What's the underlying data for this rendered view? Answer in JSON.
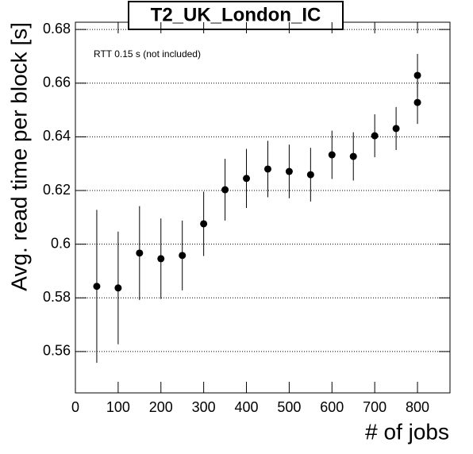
{
  "chart_data": {
    "type": "errorbar",
    "title": "T2_UK_London_IC",
    "annotation": "RTT 0.15 s (not included)",
    "x_label": "# of jobs",
    "y_label": "Avg. read time per block [s]",
    "xlim": [
      0,
      876
    ],
    "ylim": [
      0.5446,
      0.6827
    ],
    "xticks": [
      0,
      100,
      200,
      300,
      400,
      500,
      600,
      700,
      800
    ],
    "yticks": [
      0.56,
      0.58,
      0.6,
      0.62,
      0.64,
      0.66,
      0.68
    ],
    "grid": "y",
    "color": "#000000",
    "series": [
      {
        "x": [
          50,
          100,
          150,
          200,
          250,
          300,
          350,
          400,
          450,
          500,
          550,
          600,
          650,
          700,
          750,
          800,
          800
        ],
        "values": [
          0.5843,
          0.5837,
          0.5967,
          0.5946,
          0.5958,
          0.6076,
          0.6203,
          0.6245,
          0.628,
          0.6271,
          0.6259,
          0.6333,
          0.6327,
          0.6404,
          0.6431,
          0.6629,
          0.6528
        ],
        "errors": [
          0.0285,
          0.021,
          0.0175,
          0.015,
          0.013,
          0.012,
          0.0115,
          0.011,
          0.0105,
          0.01,
          0.01,
          0.009,
          0.009,
          0.008,
          0.008,
          0.008,
          0.008
        ]
      }
    ]
  }
}
